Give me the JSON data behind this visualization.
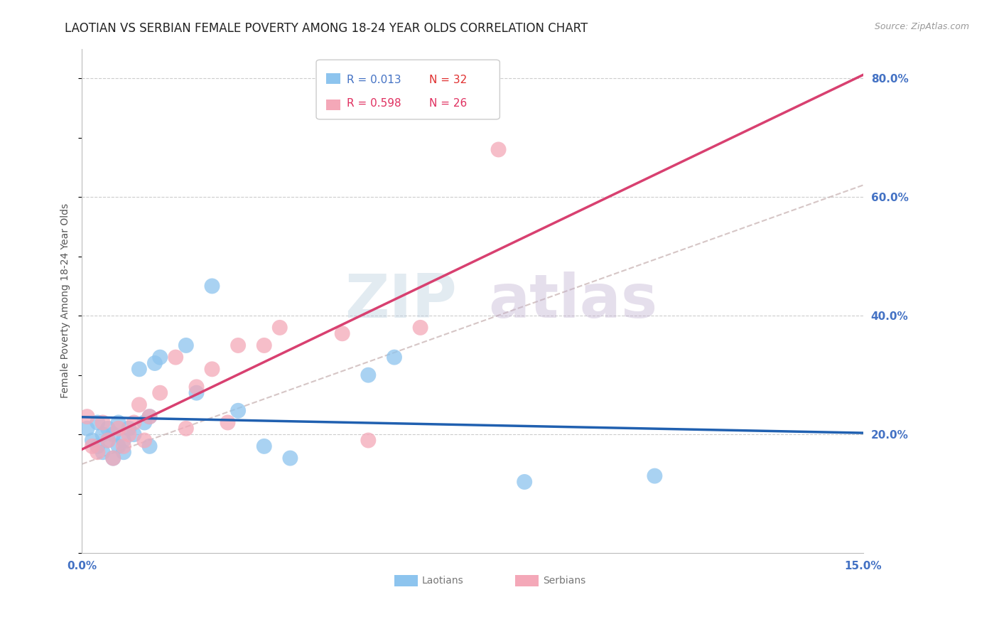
{
  "title": "LAOTIAN VS SERBIAN FEMALE POVERTY AMONG 18-24 YEAR OLDS CORRELATION CHART",
  "source": "Source: ZipAtlas.com",
  "ylabel": "Female Poverty Among 18-24 Year Olds",
  "xlim": [
    0.0,
    0.15
  ],
  "ylim": [
    0.0,
    0.85
  ],
  "yticks": [
    0.2,
    0.4,
    0.6,
    0.8
  ],
  "ytick_labels": [
    "20.0%",
    "40.0%",
    "60.0%",
    "80.0%"
  ],
  "laotian_x": [
    0.001,
    0.002,
    0.003,
    0.003,
    0.004,
    0.004,
    0.005,
    0.005,
    0.006,
    0.006,
    0.007,
    0.007,
    0.008,
    0.008,
    0.009,
    0.01,
    0.011,
    0.012,
    0.013,
    0.013,
    0.014,
    0.015,
    0.02,
    0.022,
    0.025,
    0.03,
    0.035,
    0.04,
    0.055,
    0.06,
    0.085,
    0.11
  ],
  "laotian_y": [
    0.21,
    0.19,
    0.18,
    0.22,
    0.17,
    0.2,
    0.19,
    0.21,
    0.16,
    0.2,
    0.18,
    0.22,
    0.19,
    0.17,
    0.21,
    0.2,
    0.31,
    0.22,
    0.23,
    0.18,
    0.32,
    0.33,
    0.35,
    0.27,
    0.45,
    0.24,
    0.18,
    0.16,
    0.3,
    0.33,
    0.12,
    0.13
  ],
  "serbian_x": [
    0.001,
    0.002,
    0.003,
    0.004,
    0.005,
    0.006,
    0.007,
    0.008,
    0.009,
    0.01,
    0.011,
    0.012,
    0.013,
    0.015,
    0.018,
    0.02,
    0.022,
    0.025,
    0.028,
    0.03,
    0.035,
    0.038,
    0.05,
    0.055,
    0.065,
    0.08
  ],
  "serbian_y": [
    0.23,
    0.18,
    0.17,
    0.22,
    0.19,
    0.16,
    0.21,
    0.18,
    0.2,
    0.22,
    0.25,
    0.19,
    0.23,
    0.27,
    0.33,
    0.21,
    0.28,
    0.31,
    0.22,
    0.35,
    0.35,
    0.38,
    0.37,
    0.19,
    0.38,
    0.68
  ],
  "laotian_R": 0.013,
  "laotian_N": 32,
  "serbian_R": 0.598,
  "serbian_N": 26,
  "laotian_scatter_color": "#8DC4EE",
  "serbian_scatter_color": "#F4A8B8",
  "laotian_line_color": "#2060B0",
  "serbian_line_color": "#D84070",
  "grid_color": "#CCCCCC",
  "background_color": "#FFFFFF",
  "title_fontsize": 12,
  "axis_label_fontsize": 10,
  "tick_fontsize": 11,
  "legend_fontsize": 11
}
